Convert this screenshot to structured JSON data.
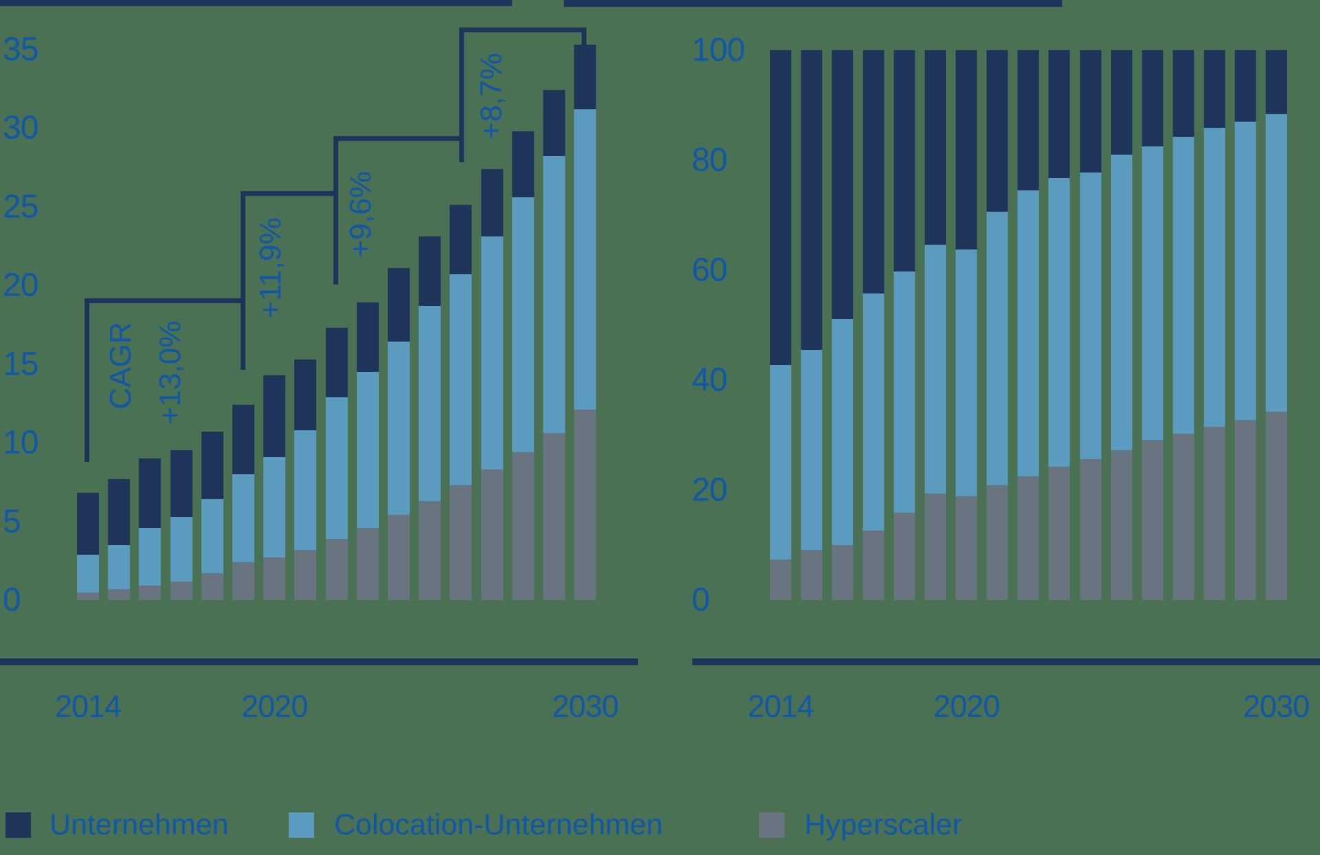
{
  "background_color": "#4a7153",
  "colors": {
    "unternehmen": "#1f3459",
    "colocation": "#5b9bc0",
    "hyperscaler": "#697481",
    "axis_text": "#1157a7",
    "bracket_line": "#1f3459"
  },
  "legend": {
    "items": [
      {
        "label": "Unternehmen",
        "color": "#1f3459"
      },
      {
        "label": "Colocation-Unternehmen",
        "color": "#5b9bc0"
      },
      {
        "label": "Hyperscaler",
        "color": "#697481"
      }
    ]
  },
  "cagr": {
    "title": "CAGR",
    "annotations": [
      {
        "label": "+13,0%",
        "from": "2014",
        "to": "2019"
      },
      {
        "label": "+11,9%",
        "from": "2019",
        "to": "2022"
      },
      {
        "label": "+9,6%",
        "from": "2022",
        "to": "2026"
      },
      {
        "label": "+8,7%",
        "from": "2026",
        "to": "2030"
      }
    ]
  },
  "chart_data": [
    {
      "type": "bar",
      "stacked": true,
      "title": "",
      "x": [
        2014,
        2015,
        2016,
        2017,
        2018,
        2019,
        2020,
        2021,
        2022,
        2023,
        2024,
        2025,
        2026,
        2027,
        2028,
        2029,
        2030
      ],
      "xticks": [
        2014,
        2020,
        2030
      ],
      "ylim": [
        0,
        35
      ],
      "yticks": [
        0,
        5,
        10,
        15,
        20,
        25,
        30,
        35
      ],
      "grid": false,
      "legend_position": "bottom",
      "series": [
        {
          "name": "Hyperscaler",
          "color": "#697481",
          "values": [
            0.5,
            0.7,
            0.9,
            1.2,
            1.7,
            2.4,
            2.7,
            3.2,
            3.9,
            4.6,
            5.4,
            6.3,
            7.3,
            8.3,
            9.4,
            10.6,
            12.1
          ]
        },
        {
          "name": "Colocation-Unternehmen",
          "color": "#5b9bc0",
          "values": [
            2.4,
            2.8,
            3.7,
            4.1,
            4.7,
            5.6,
            6.4,
            7.6,
            9.0,
            9.9,
            11.0,
            12.4,
            13.4,
            14.8,
            16.2,
            17.6,
            19.1
          ]
        },
        {
          "name": "Unternehmen",
          "color": "#1f3459",
          "values": [
            3.9,
            4.2,
            4.4,
            4.2,
            4.3,
            4.4,
            5.2,
            4.5,
            4.4,
            4.4,
            4.7,
            4.4,
            4.4,
            4.3,
            4.2,
            4.2,
            4.1
          ]
        }
      ]
    },
    {
      "type": "bar",
      "stacked": true,
      "unit": "%",
      "title": "",
      "x": [
        2014,
        2015,
        2016,
        2017,
        2018,
        2019,
        2020,
        2021,
        2022,
        2023,
        2024,
        2025,
        2026,
        2027,
        2028,
        2029,
        2030
      ],
      "xticks": [
        2014,
        2020,
        2030
      ],
      "ylim": [
        0,
        100
      ],
      "yticks": [
        0,
        20,
        40,
        60,
        80,
        100
      ],
      "grid": false,
      "legend_position": "bottom",
      "series": [
        {
          "name": "Hyperscaler",
          "color": "#697481",
          "values": [
            7.4,
            9.1,
            10.0,
            12.6,
            15.9,
            19.4,
            18.9,
            20.9,
            22.5,
            24.3,
            25.6,
            27.3,
            29.1,
            30.3,
            31.5,
            32.7,
            34.3
          ]
        },
        {
          "name": "Colocation-Unternehmen",
          "color": "#5b9bc0",
          "values": [
            35.3,
            36.4,
            41.1,
            43.2,
            43.9,
            45.2,
            44.8,
            49.7,
            52.0,
            52.4,
            52.1,
            53.7,
            53.4,
            54.0,
            54.4,
            54.3,
            54.1
          ]
        },
        {
          "name": "Unternehmen",
          "color": "#1f3459",
          "values": [
            57.3,
            54.5,
            48.9,
            44.2,
            40.2,
            35.4,
            36.3,
            29.4,
            25.5,
            23.3,
            22.3,
            19.0,
            17.5,
            15.7,
            14.1,
            13.0,
            11.6
          ]
        }
      ]
    }
  ]
}
